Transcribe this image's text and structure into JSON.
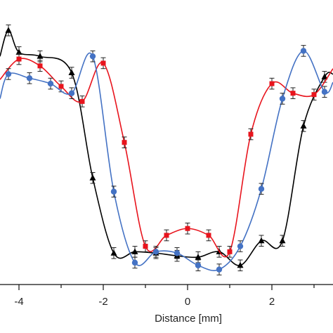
{
  "chart_data": {
    "type": "line",
    "xlabel": "Distance [mm]",
    "xlim": [
      -4.45,
      3.45
    ],
    "ylim": [
      0,
      1
    ],
    "x_ticks": [
      -4,
      -2,
      0,
      2
    ],
    "x_tick_labels": [
      "-4",
      "-2",
      "0",
      "2"
    ],
    "grid": false,
    "legend": "none",
    "series": [
      {
        "color": "#000000",
        "marker": "triangle",
        "error": 0.02,
        "points": [
          [
            -4.45,
            0.835
          ],
          [
            -4.25,
            0.93
          ],
          [
            -4.0,
            0.85
          ],
          [
            -3.5,
            0.835
          ],
          [
            -2.75,
            0.775
          ],
          [
            -2.25,
            0.39
          ],
          [
            -1.75,
            0.115
          ],
          [
            -1.25,
            0.12
          ],
          [
            -0.75,
            0.115
          ],
          [
            -0.25,
            0.105
          ],
          [
            0.25,
            0.1
          ],
          [
            0.75,
            0.12
          ],
          [
            1.25,
            0.07
          ],
          [
            1.75,
            0.16
          ],
          [
            2.25,
            0.16
          ],
          [
            2.75,
            0.58
          ],
          [
            3.25,
            0.76
          ],
          [
            3.45,
            0.77
          ]
        ]
      },
      {
        "color": "#e8141d",
        "marker": "square",
        "error": 0.02,
        "points": [
          [
            -4.45,
            0.75
          ],
          [
            -4.0,
            0.825
          ],
          [
            -3.5,
            0.8
          ],
          [
            -3.0,
            0.725
          ],
          [
            -2.5,
            0.67
          ],
          [
            -2.0,
            0.81
          ],
          [
            -1.5,
            0.52
          ],
          [
            -1.0,
            0.14
          ],
          [
            -0.5,
            0.18
          ],
          [
            0.0,
            0.205
          ],
          [
            0.5,
            0.18
          ],
          [
            1.0,
            0.12
          ],
          [
            1.5,
            0.55
          ],
          [
            2.0,
            0.735
          ],
          [
            2.5,
            0.7
          ],
          [
            3.0,
            0.695
          ],
          [
            3.45,
            0.79
          ]
        ]
      },
      {
        "color": "#4472c4",
        "marker": "circle",
        "error": 0.02,
        "points": [
          [
            -4.45,
            0.68
          ],
          [
            -4.25,
            0.77
          ],
          [
            -3.75,
            0.755
          ],
          [
            -3.25,
            0.735
          ],
          [
            -2.75,
            0.7
          ],
          [
            -2.25,
            0.835
          ],
          [
            -1.75,
            0.34
          ],
          [
            -1.25,
            0.08
          ],
          [
            -0.75,
            0.12
          ],
          [
            -0.25,
            0.115
          ],
          [
            0.25,
            0.07
          ],
          [
            0.75,
            0.055
          ],
          [
            1.25,
            0.14
          ],
          [
            1.75,
            0.35
          ],
          [
            2.25,
            0.68
          ],
          [
            2.75,
            0.855
          ],
          [
            3.25,
            0.705
          ],
          [
            3.45,
            0.74
          ]
        ]
      }
    ]
  }
}
